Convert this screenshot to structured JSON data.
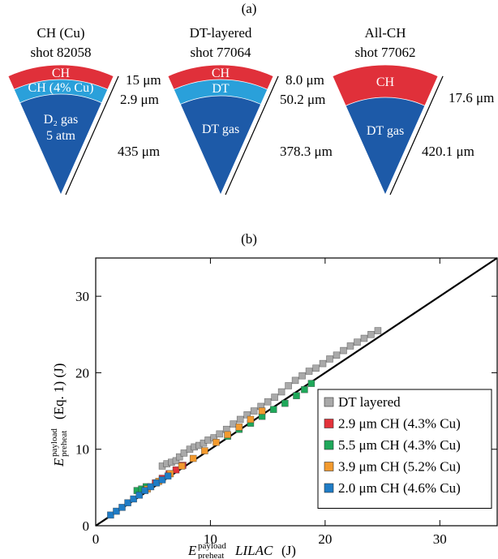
{
  "panel_a": {
    "label": "(a)",
    "targets": [
      {
        "title": "CH (Cu)",
        "shot": "shot 82058",
        "layers": [
          [
            "CH"
          ],
          [
            "CH (4% Cu)"
          ],
          [
            "D₂ gas",
            "5 atm"
          ]
        ],
        "dimensions": [
          "15 μm",
          "2.9 μm",
          "435 μm"
        ]
      },
      {
        "title": "DT-layered",
        "shot": "shot 77064",
        "layers": [
          [
            "CH"
          ],
          [
            "DT"
          ],
          [
            "DT gas"
          ]
        ],
        "dimensions": [
          "8.0 μm",
          "50.2 μm",
          "378.3 μm"
        ]
      },
      {
        "title": "All-CH",
        "shot": "shot 77062",
        "layers": [
          [
            "CH"
          ],
          [
            "DT gas"
          ]
        ],
        "dimensions": [
          "17.6 μm",
          "420.1 μm"
        ]
      }
    ]
  },
  "chart_data": {
    "type": "scatter",
    "panel_label": "(b)",
    "x_label": {
      "symbol": "E",
      "sup": "payload",
      "sub": "preheat",
      "italic": "LILAC",
      "unit": "(J)"
    },
    "y_label": {
      "symbol": "E",
      "sup": "payload",
      "sub": "preheat",
      "text": "(Eq. 1) (J)"
    },
    "xlim": [
      0,
      35
    ],
    "ylim": [
      0,
      35
    ],
    "xticks": [
      0,
      10,
      20,
      30
    ],
    "yticks": [
      0,
      10,
      20,
      30
    ],
    "legend": "lower right",
    "reference_line": {
      "x": [
        0,
        35
      ],
      "y": [
        0,
        35
      ],
      "color": "#000000"
    },
    "series": [
      {
        "name": "DT layered",
        "color": "#a9a9a9",
        "text_color": "#000000",
        "x": [
          5.8,
          6.2,
          6.6,
          7.0,
          7.3,
          7.7,
          8.2,
          8.6,
          9.0,
          9.4,
          9.8,
          10.3,
          10.8,
          11.4,
          12.0,
          12.6,
          13.2,
          13.8,
          14.4,
          15.0,
          15.6,
          16.2,
          16.8,
          17.4,
          18.0,
          18.6,
          19.2,
          19.8,
          20.4,
          21.0,
          21.6,
          22.2,
          22.8,
          23.4,
          24.0,
          24.6
        ],
        "values": [
          7.8,
          8.1,
          8.3,
          8.5,
          9.0,
          9.5,
          10.0,
          10.3,
          10.5,
          10.8,
          11.2,
          11.5,
          12.0,
          12.6,
          13.3,
          13.9,
          14.5,
          15.0,
          15.6,
          16.2,
          16.8,
          17.5,
          18.3,
          19.0,
          19.6,
          20.2,
          20.6,
          21.2,
          21.8,
          22.3,
          22.9,
          23.5,
          24.0,
          24.5,
          25.0,
          25.5
        ]
      },
      {
        "name": "2.9 μm CH (4.3% Cu)",
        "color": "#e3323a",
        "text_color": "#e3323a",
        "x": [
          5.2,
          5.8,
          6.4,
          7.0,
          7.6
        ],
        "values": [
          5.6,
          6.2,
          6.8,
          7.3,
          7.9
        ]
      },
      {
        "name": "5.5 μm CH (4.3% Cu)",
        "color": "#1fa85a",
        "text_color": "#1fa85a",
        "x": [
          3.6,
          4.0,
          4.4,
          11.5,
          12.5,
          13.5,
          14.5,
          15.5,
          16.5,
          17.5,
          18.2,
          18.8
        ],
        "values": [
          4.6,
          4.8,
          5.1,
          11.7,
          12.6,
          13.4,
          14.3,
          15.2,
          16.0,
          17.0,
          17.8,
          18.6
        ]
      },
      {
        "name": "3.9 μm CH (5.2% Cu)",
        "color": "#f39a2e",
        "text_color": "#f39a2e",
        "x": [
          4.5,
          5.5,
          6.5,
          7.5,
          8.5,
          9.5,
          10.5,
          11.5,
          12.5,
          13.5,
          14.5
        ],
        "values": [
          4.8,
          5.8,
          6.8,
          7.8,
          8.8,
          9.8,
          10.9,
          11.9,
          12.9,
          13.9,
          15.0
        ]
      },
      {
        "name": "2.0 μm CH (4.6% Cu)",
        "color": "#1f7cc6",
        "text_color": "#1f7cc6",
        "x": [
          1.3,
          1.8,
          2.3,
          2.8,
          3.3,
          3.8,
          4.3,
          4.8,
          5.3,
          5.8,
          6.3
        ],
        "values": [
          1.4,
          1.9,
          2.4,
          3.0,
          3.5,
          4.0,
          4.6,
          5.1,
          5.6,
          6.0,
          6.5
        ]
      }
    ]
  }
}
